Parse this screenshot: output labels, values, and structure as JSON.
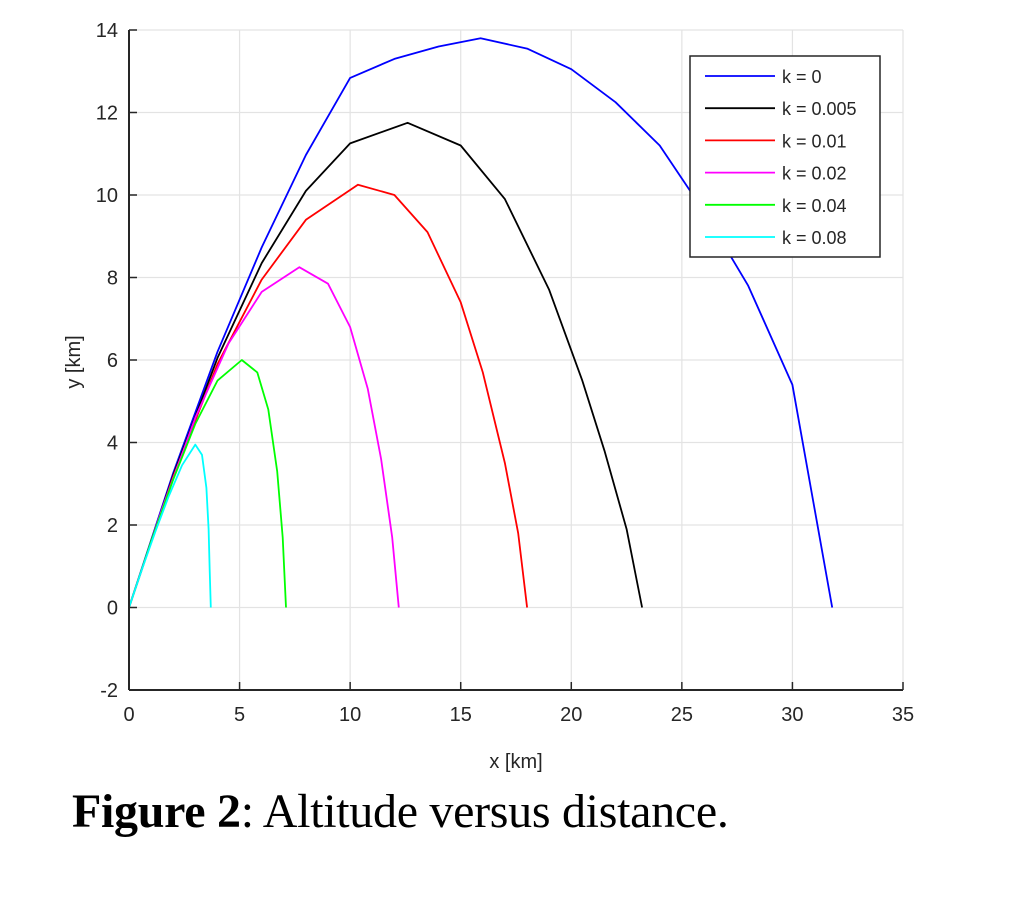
{
  "caption": {
    "label": "Figure 2",
    "text": ": Altitude versus distance."
  },
  "chart_data": {
    "type": "line",
    "title": "",
    "xlabel": "x [km]",
    "ylabel": "y [km]",
    "xlim": [
      0,
      35
    ],
    "ylim": [
      -2,
      14
    ],
    "xticks": [
      0,
      5,
      10,
      15,
      20,
      25,
      30,
      35
    ],
    "yticks": [
      -2,
      0,
      2,
      4,
      6,
      8,
      10,
      12,
      14
    ],
    "grid": true,
    "legend_position": "upper right",
    "series": [
      {
        "name": "k = 0",
        "color": "#0000ff",
        "x": [
          0,
          2,
          4,
          6,
          8,
          10,
          12,
          14,
          15.9,
          18,
          20,
          22,
          24,
          26,
          28,
          30,
          31.8
        ],
        "y": [
          0,
          3.26,
          6.2,
          8.73,
          10.97,
          12.84,
          13.3,
          13.6,
          13.8,
          13.55,
          13.05,
          12.25,
          11.2,
          9.6,
          7.8,
          5.4,
          0
        ]
      },
      {
        "name": "k = 0.005",
        "color": "#000000",
        "x": [
          0,
          2,
          4,
          6,
          8,
          10,
          12.6,
          15,
          17,
          19,
          20.5,
          21.5,
          22.5,
          23.2
        ],
        "y": [
          0,
          3.2,
          6.05,
          8.35,
          10.1,
          11.25,
          11.75,
          11.2,
          9.9,
          7.7,
          5.5,
          3.8,
          1.9,
          0
        ]
      },
      {
        "name": "k = 0.01",
        "color": "#ff0000",
        "x": [
          0,
          2,
          4,
          6,
          8,
          10.35,
          12,
          13.5,
          15,
          16,
          17,
          17.6,
          18.0
        ],
        "y": [
          0,
          3.17,
          5.9,
          7.95,
          9.4,
          10.25,
          10.0,
          9.1,
          7.4,
          5.7,
          3.5,
          1.8,
          0
        ]
      },
      {
        "name": "k = 0.02",
        "color": "#ff00ff",
        "x": [
          0,
          1.5,
          3,
          4.5,
          6,
          7.7,
          9,
          10,
          10.8,
          11.4,
          11.9,
          12.2
        ],
        "y": [
          0,
          2.4,
          4.6,
          6.4,
          7.65,
          8.25,
          7.85,
          6.8,
          5.3,
          3.6,
          1.7,
          0
        ]
      },
      {
        "name": "k = 0.04",
        "color": "#00ff00",
        "x": [
          0,
          1,
          2,
          3,
          4,
          5.1,
          5.8,
          6.3,
          6.7,
          6.95,
          7.1
        ],
        "y": [
          0,
          1.6,
          3.1,
          4.45,
          5.5,
          6.0,
          5.7,
          4.8,
          3.3,
          1.7,
          0
        ]
      },
      {
        "name": "k = 0.08",
        "color": "#00ffff",
        "x": [
          0,
          0.6,
          1.2,
          1.8,
          2.4,
          3.0,
          3.3,
          3.5,
          3.6,
          3.65,
          3.7
        ],
        "y": [
          0,
          0.95,
          1.85,
          2.7,
          3.45,
          3.95,
          3.7,
          2.9,
          1.9,
          0.9,
          0
        ]
      }
    ]
  }
}
